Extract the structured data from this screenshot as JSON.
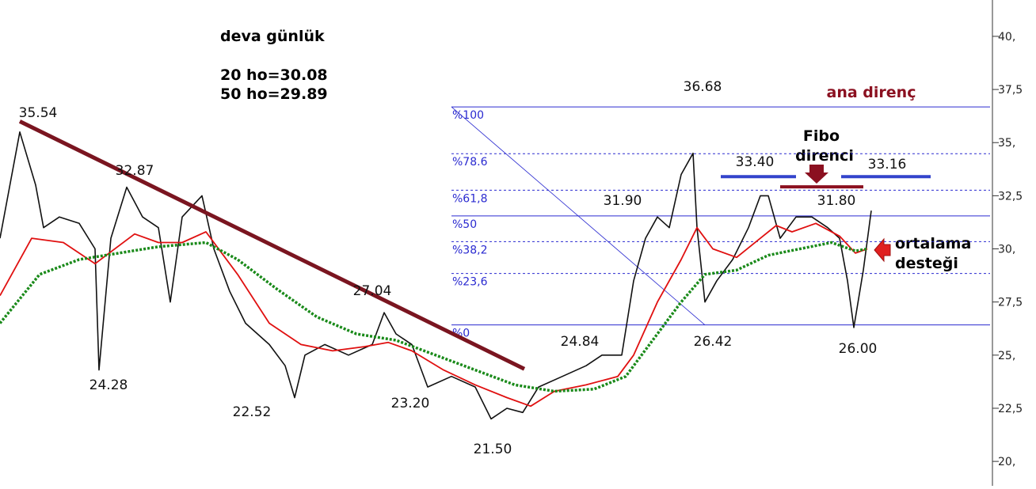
{
  "chart_data": {
    "type": "line",
    "title": "deva günlük",
    "subtitle_lines": [
      "20 ho=30.08",
      "50 ho=29.89"
    ],
    "xlim": [
      0,
      125
    ],
    "ylim": [
      18.85,
      41.71
    ],
    "yticks": [
      {
        "value": 20,
        "label": "20,"
      },
      {
        "value": 22.5,
        "label": "22,5"
      },
      {
        "value": 25,
        "label": "25,"
      },
      {
        "value": 27.5,
        "label": "27,5"
      },
      {
        "value": 30,
        "label": "30,"
      },
      {
        "value": 32.5,
        "label": "32,5"
      },
      {
        "value": 35,
        "label": "35,"
      },
      {
        "value": 37.5,
        "label": "37,5"
      },
      {
        "value": 40,
        "label": "40,"
      }
    ],
    "series": [
      {
        "name": "deva",
        "color": "#111111",
        "x": [
          0,
          2.5,
          4.5,
          5.5,
          7.5,
          10,
          12,
          12.5,
          14,
          16,
          18,
          20,
          21.5,
          23,
          25.5,
          27,
          29,
          31,
          34,
          36,
          37.2,
          38.5,
          41,
          44,
          47,
          48.5,
          50,
          52,
          54,
          57,
          60,
          62,
          64,
          66,
          68,
          71,
          74,
          76,
          78.5,
          80,
          81.5,
          83,
          84.5,
          86,
          87.5,
          88,
          89,
          90.5,
          92.5,
          94.5,
          96,
          97,
          98.5,
          100.5,
          102.5,
          104.5,
          106,
          107,
          107.8,
          109,
          110
        ],
        "values": [
          30.5,
          35.5,
          33,
          31,
          31.5,
          31.2,
          30,
          24.3,
          30.5,
          32.9,
          31.5,
          31,
          27.5,
          31.5,
          32.5,
          30,
          28,
          26.5,
          25.5,
          24.5,
          23,
          25,
          25.5,
          25,
          25.5,
          27,
          26,
          25.5,
          23.5,
          24,
          23.5,
          22,
          22.5,
          22.3,
          23.5,
          24,
          24.5,
          25,
          25,
          28.5,
          30.5,
          31.5,
          31,
          33.5,
          34.5,
          31,
          27.5,
          28.5,
          29.5,
          31,
          32.5,
          32.5,
          30.5,
          31.5,
          31.5,
          31,
          30.5,
          28.5,
          26.3,
          29,
          31.8
        ]
      },
      {
        "name": "20 ho",
        "color": "#e01010",
        "x": [
          0,
          4,
          8,
          12,
          17,
          20,
          23,
          26,
          30,
          34,
          38,
          42,
          46,
          49,
          52,
          56,
          60,
          64,
          67,
          70,
          74,
          78,
          80,
          83,
          86,
          88,
          90,
          93,
          96,
          98,
          100,
          103,
          106,
          108,
          109.5
        ],
        "values": [
          27.8,
          30.5,
          30.3,
          29.3,
          30.7,
          30.3,
          30.3,
          30.8,
          28.8,
          26.5,
          25.5,
          25.2,
          25.4,
          25.6,
          25.2,
          24.3,
          23.6,
          23,
          22.6,
          23.3,
          23.6,
          24,
          25,
          27.5,
          29.5,
          31,
          30,
          29.6,
          30.5,
          31.1,
          30.8,
          31.2,
          30.6,
          29.8,
          30
        ]
      },
      {
        "name": "50 ho",
        "color": "#1a8a1a",
        "dotted": true,
        "x": [
          0,
          5,
          10,
          15,
          20,
          26,
          30,
          35,
          40,
          45,
          50,
          55,
          60,
          65,
          70,
          75,
          79,
          82,
          86,
          89,
          93,
          97,
          101,
          105,
          108,
          109.5
        ],
        "values": [
          26.5,
          28.8,
          29.5,
          29.8,
          30.1,
          30.3,
          29.5,
          28.1,
          26.8,
          26,
          25.7,
          25,
          24.3,
          23.6,
          23.3,
          23.4,
          24,
          25.5,
          27.5,
          28.8,
          29,
          29.7,
          30,
          30.3,
          29.9,
          30
        ]
      }
    ],
    "trendline": {
      "color": "#7a1520",
      "x": [
        2.5,
        66.2
      ],
      "values": [
        36.0,
        24.35
      ]
    },
    "fibonacci": {
      "color": "#2a2ad0",
      "x": [
        57,
        125
      ],
      "swing_x": [
        57,
        89
      ],
      "levels": [
        {
          "label": "%100",
          "value": 36.68,
          "solid": true
        },
        {
          "label": "%78.6",
          "value": 34.48
        },
        {
          "label": "%61,8",
          "value": 32.76
        },
        {
          "label": "%50",
          "value": 31.55,
          "solid": true
        },
        {
          "label": "%38,2",
          "value": 30.34
        },
        {
          "label": "%23,6",
          "value": 28.84
        },
        {
          "label": "%0",
          "value": 26.42,
          "solid": true
        }
      ]
    },
    "segments": [
      {
        "value": 33.4,
        "x": [
          91,
          100.5
        ],
        "color": "#3344cc"
      },
      {
        "value": 33.4,
        "x": [
          106.2,
          117.5
        ],
        "color": "#3344cc"
      },
      {
        "value": 32.92,
        "x": [
          98.5,
          109
        ],
        "color": "#8b1020"
      }
    ],
    "price_labels": [
      "35.54",
      "32.87",
      "24.28",
      "22.52",
      "27.04",
      "23.20",
      "21.50",
      "24.84",
      "31.90",
      "36.68",
      "26.42",
      "33.40",
      "31.80",
      "33.16",
      "26.00"
    ],
    "annotations": {
      "main_resistance": "ana direnç",
      "fibo_resistance": [
        "Fibo",
        "direnci"
      ],
      "average_support": [
        "ortalama",
        "desteği"
      ]
    }
  }
}
